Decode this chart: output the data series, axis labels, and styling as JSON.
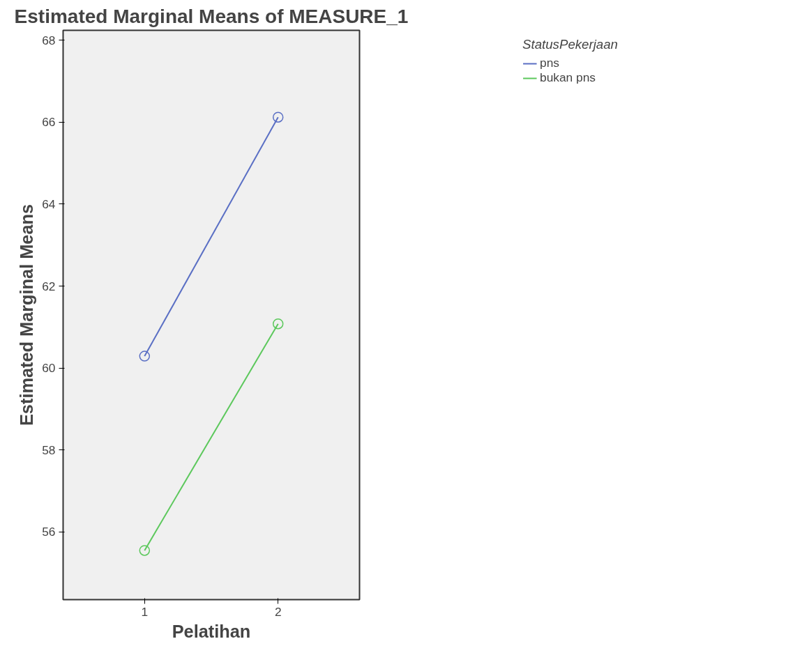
{
  "chart_data": {
    "type": "line",
    "title": "Estimated Marginal Means of MEASURE_1",
    "xlabel": "Pelatihan",
    "ylabel": "Estimated Marginal Means",
    "legend_title": "StatusPekerjaan",
    "categories": [
      "1",
      "2"
    ],
    "series": [
      {
        "name": "pns",
        "color": "#5a6fc4",
        "values": [
          60.29,
          66.12
        ]
      },
      {
        "name": "bukan pns",
        "color": "#5cc85c",
        "values": [
          55.55,
          61.08
        ]
      }
    ],
    "ylim": [
      54.35,
      68.24
    ],
    "yticks": [
      56,
      58,
      60,
      62,
      64,
      66,
      68
    ],
    "marker": "circle",
    "line_style": "solid",
    "grid": false,
    "legend": "right"
  }
}
